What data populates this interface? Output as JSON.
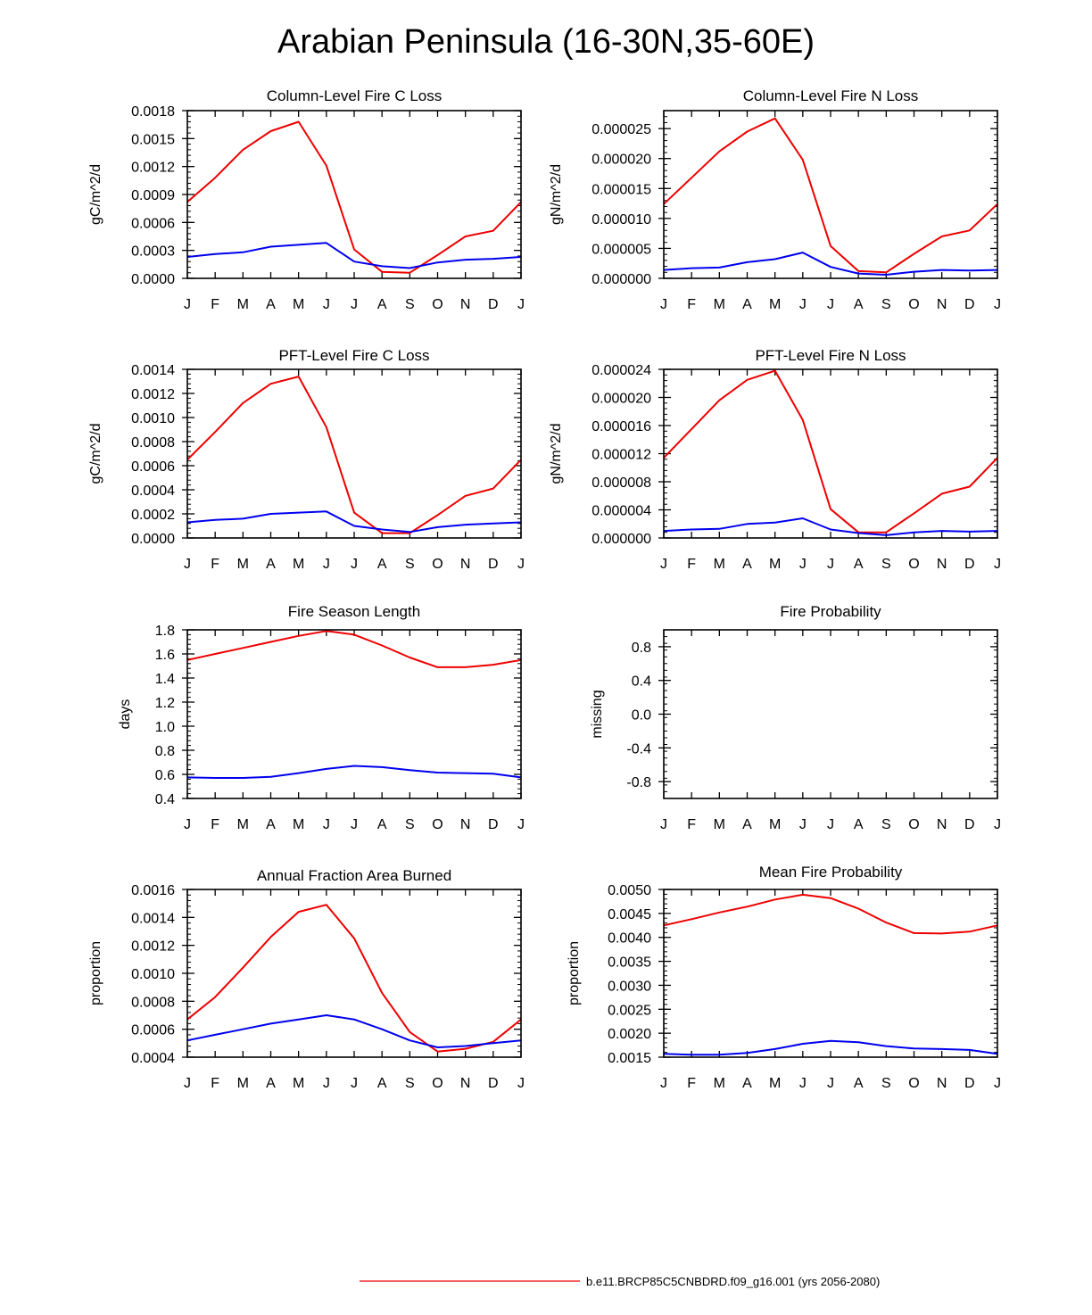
{
  "title": "Arabian Peninsula (16-30N,35-60E)",
  "months": [
    "J",
    "F",
    "M",
    "A",
    "M",
    "J",
    "J",
    "A",
    "S",
    "O",
    "N",
    "D",
    "J"
  ],
  "colors": {
    "run1": "#ee0000",
    "run2": "#0000ee"
  },
  "legend": {
    "label": "b.e11.BRCP85C5CNBDRD.f09_g16.001 (yrs 2056-2080)",
    "color": "#ee0000"
  },
  "chart_data": [
    {
      "type": "line",
      "title": "Column-Level Fire C Loss",
      "ylabel": "gC/m^2/d",
      "ylim": [
        0,
        0.0018
      ],
      "yticks": [
        "0.0000",
        "0.0003",
        "0.0006",
        "0.0009",
        "0.0012",
        "0.0015",
        "0.0018"
      ],
      "series": [
        {
          "name": "red",
          "values": [
            0.00082,
            0.00108,
            0.00138,
            0.00158,
            0.00168,
            0.00121,
            0.00031,
            7e-05,
            6e-05,
            0.00025,
            0.00045,
            0.00051,
            0.00082
          ]
        },
        {
          "name": "blue",
          "values": [
            0.00023,
            0.00026,
            0.00028,
            0.00034,
            0.00036,
            0.00038,
            0.00018,
            0.00013,
            0.00011,
            0.00017,
            0.0002,
            0.00021,
            0.00023
          ]
        }
      ]
    },
    {
      "type": "line",
      "title": "Column-Level Fire N Loss",
      "ylabel": "gN/m^2/d",
      "ylim": [
        0,
        2.8e-05
      ],
      "yticks": [
        "0.000000",
        "0.000005",
        "0.000010",
        "0.000015",
        "0.000020",
        "0.000025"
      ],
      "series": [
        {
          "name": "red",
          "values": [
            1.24e-05,
            1.68e-05,
            2.12e-05,
            2.45e-05,
            2.67e-05,
            1.98e-05,
            5.4e-06,
            1.2e-06,
            1e-06,
            4.1e-06,
            7e-06,
            8e-06,
            1.24e-05
          ]
        },
        {
          "name": "blue",
          "values": [
            1.4e-06,
            1.7e-06,
            1.8e-06,
            2.7e-06,
            3.2e-06,
            4.3e-06,
            1.9e-06,
            8e-07,
            6e-07,
            1.1e-06,
            1.4e-06,
            1.3e-06,
            1.4e-06
          ]
        }
      ]
    },
    {
      "type": "line",
      "title": "PFT-Level Fire C Loss",
      "ylabel": "gC/m^2/d",
      "ylim": [
        0,
        0.0014
      ],
      "yticks": [
        "0.0000",
        "0.0002",
        "0.0004",
        "0.0006",
        "0.0008",
        "0.0010",
        "0.0012",
        "0.0014"
      ],
      "series": [
        {
          "name": "red",
          "values": [
            0.00065,
            0.00088,
            0.00112,
            0.00128,
            0.00134,
            0.00092,
            0.00021,
            4e-05,
            4e-05,
            0.00019,
            0.00035,
            0.00041,
            0.00065
          ]
        },
        {
          "name": "blue",
          "values": [
            0.00013,
            0.00015,
            0.00016,
            0.0002,
            0.00021,
            0.00022,
            0.0001,
            7e-05,
            5e-05,
            9e-05,
            0.00011,
            0.00012,
            0.00013
          ]
        }
      ]
    },
    {
      "type": "line",
      "title": "PFT-Level Fire N Loss",
      "ylabel": "gN/m^2/d",
      "ylim": [
        0,
        2.4e-05
      ],
      "yticks": [
        "0.000000",
        "0.000004",
        "0.000008",
        "0.000012",
        "0.000016",
        "0.000020",
        "0.000024"
      ],
      "series": [
        {
          "name": "red",
          "values": [
            1.14e-05,
            1.55e-05,
            1.96e-05,
            2.25e-05,
            2.38e-05,
            1.68e-05,
            4.1e-06,
            8e-07,
            8e-07,
            3.5e-06,
            6.3e-06,
            7.3e-06,
            1.14e-05
          ]
        },
        {
          "name": "blue",
          "values": [
            1e-06,
            1.2e-06,
            1.3e-06,
            2e-06,
            2.2e-06,
            2.8e-06,
            1.2e-06,
            7e-07,
            4e-07,
            8e-07,
            1e-06,
            9e-07,
            1e-06
          ]
        }
      ]
    },
    {
      "type": "line",
      "title": "Fire Season Length",
      "ylabel": "days",
      "ylim": [
        0.4,
        1.8
      ],
      "yticks": [
        "0.4",
        "0.6",
        "0.8",
        "1.0",
        "1.2",
        "1.4",
        "1.6",
        "1.8"
      ],
      "series": [
        {
          "name": "red",
          "values": [
            1.55,
            1.6,
            1.65,
            1.7,
            1.75,
            1.79,
            1.76,
            1.67,
            1.57,
            1.49,
            1.49,
            1.51,
            1.55
          ]
        },
        {
          "name": "blue",
          "values": [
            0.575,
            0.57,
            0.57,
            0.58,
            0.61,
            0.645,
            0.67,
            0.66,
            0.635,
            0.615,
            0.61,
            0.605,
            0.575
          ]
        }
      ]
    },
    {
      "type": "line",
      "title": "Fire Probability",
      "ylabel": "missing",
      "ylim": [
        -1.0,
        1.0
      ],
      "yticks": [
        "-0.8",
        "-0.4",
        "0.0",
        "0.4",
        "0.8"
      ],
      "series": []
    },
    {
      "type": "line",
      "title": "Annual Fraction Area Burned",
      "ylabel": "proportion",
      "ylim": [
        0.0004,
        0.0016
      ],
      "yticks": [
        "0.0004",
        "0.0006",
        "0.0008",
        "0.0010",
        "0.0012",
        "0.0014",
        "0.0016"
      ],
      "series": [
        {
          "name": "red",
          "values": [
            0.00067,
            0.00083,
            0.00104,
            0.00126,
            0.00144,
            0.00149,
            0.00125,
            0.00086,
            0.00058,
            0.00044,
            0.00046,
            0.00051,
            0.00067
          ]
        },
        {
          "name": "blue",
          "values": [
            0.00052,
            0.00056,
            0.0006,
            0.00064,
            0.00067,
            0.0007,
            0.00067,
            0.0006,
            0.00052,
            0.00047,
            0.00048,
            0.0005,
            0.00052
          ]
        }
      ]
    },
    {
      "type": "line",
      "title": "Mean Fire Probability",
      "ylabel": "proportion",
      "ylim": [
        0.0015,
        0.005
      ],
      "yticks": [
        "0.0015",
        "0.0020",
        "0.0025",
        "0.0030",
        "0.0035",
        "0.0040",
        "0.0045",
        "0.0050"
      ],
      "series": [
        {
          "name": "red",
          "values": [
            0.00425,
            0.00438,
            0.00452,
            0.00464,
            0.00479,
            0.00489,
            0.00482,
            0.0046,
            0.00431,
            0.00409,
            0.00408,
            0.00412,
            0.00425
          ]
        },
        {
          "name": "blue",
          "values": [
            0.00157,
            0.00155,
            0.00155,
            0.00159,
            0.00167,
            0.00178,
            0.00184,
            0.00181,
            0.00173,
            0.00168,
            0.00167,
            0.00165,
            0.00157
          ]
        }
      ]
    }
  ]
}
